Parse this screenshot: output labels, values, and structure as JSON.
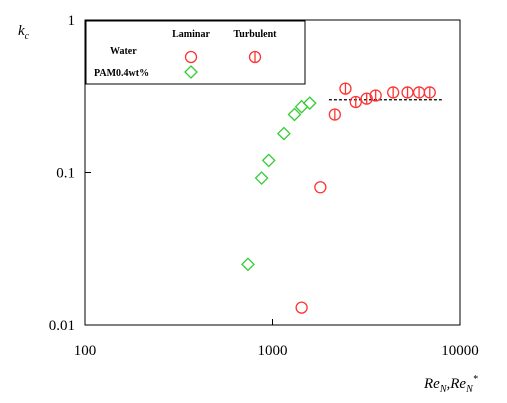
{
  "chart_data": {
    "type": "scatter",
    "xscale": "log",
    "yscale": "log",
    "xlim": [
      100,
      10000
    ],
    "ylim": [
      0.01,
      1
    ],
    "x_ticks": [
      100,
      1000,
      10000
    ],
    "x_tick_labels": [
      "100",
      "1000",
      "10000"
    ],
    "y_ticks": [
      0.01,
      0.1,
      1
    ],
    "y_tick_labels": [
      "0.01",
      "0.1",
      "1"
    ],
    "xlabel": "ReN,ReN*",
    "ylabel": "kc",
    "grid": false,
    "legend_position": "top-left",
    "legend": {
      "col_headers": [
        "Laminar",
        "Turbulent"
      ],
      "rows": [
        "Water",
        "PAM0.4wt%"
      ]
    },
    "series": [
      {
        "name": "Water Laminar",
        "marker": "circle",
        "color": "#ff3333",
        "x": [
          1430,
          1800
        ],
        "y": [
          0.013,
          0.08
        ]
      },
      {
        "name": "Water Turbulent",
        "marker": "circle-bar",
        "color": "#ff3333",
        "x": [
          2150,
          2450,
          2780,
          3180,
          3550,
          4400,
          5250,
          6050,
          6900
        ],
        "y": [
          0.24,
          0.355,
          0.29,
          0.305,
          0.32,
          0.335,
          0.335,
          0.335,
          0.335
        ]
      },
      {
        "name": "PAM0.4wt% Laminar",
        "marker": "diamond",
        "color": "#33cc33",
        "x": [
          740,
          875,
          955,
          1150,
          1310,
          1430,
          1580
        ],
        "y": [
          0.025,
          0.092,
          0.12,
          0.18,
          0.24,
          0.27,
          0.285
        ]
      }
    ],
    "reference_line": {
      "style": "dashed",
      "color": "#000000",
      "x": [
        2000,
        8000
      ],
      "y": [
        0.3,
        0.3
      ]
    }
  }
}
